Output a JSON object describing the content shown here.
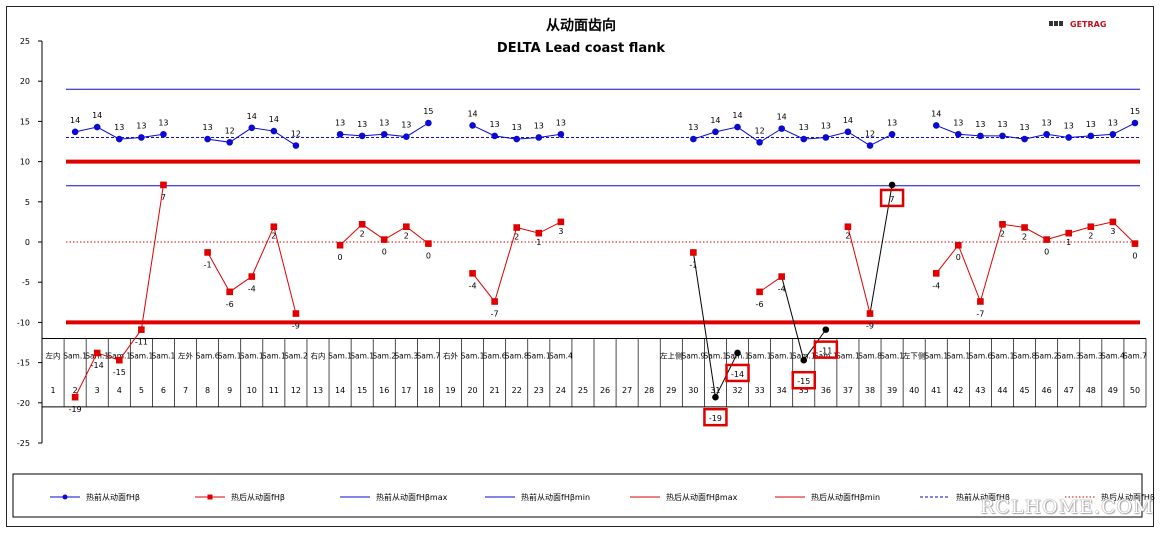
{
  "brand": {
    "name": "GETRAG",
    "color": "#c0121f"
  },
  "watermark": "RCLHOME.COM",
  "colors": {
    "blue": "#0a0ad0",
    "red": "#e00000",
    "black": "#000000",
    "grid": "#000000"
  },
  "chart_data": {
    "type": "line",
    "title": "从动面齿向",
    "subtitle": "DELTA Lead coast flank",
    "ylim": [
      -25,
      25
    ],
    "yticks": [
      -25,
      -20,
      -15,
      -10,
      -5,
      0,
      5,
      10,
      15,
      20,
      25
    ],
    "x": [
      1,
      2,
      3,
      4,
      5,
      6,
      7,
      8,
      9,
      10,
      11,
      12,
      13,
      14,
      15,
      16,
      17,
      18,
      19,
      20,
      21,
      22,
      23,
      24,
      25,
      26,
      27,
      28,
      29,
      30,
      31,
      32,
      33,
      34,
      35,
      36,
      37,
      38,
      39,
      40,
      41,
      42,
      43,
      44,
      45,
      46,
      47,
      48,
      49,
      50
    ],
    "sample_labels": [
      {
        "x": 1,
        "text": "左内"
      },
      {
        "x": 2,
        "text": "Sam.1"
      },
      {
        "x": 3,
        "text": "Sam.1"
      },
      {
        "x": 4,
        "text": "Sam.1"
      },
      {
        "x": 5,
        "text": "Sam.1"
      },
      {
        "x": 6,
        "text": "Sam.1"
      },
      {
        "x": 7,
        "text": "左外"
      },
      {
        "x": 8,
        "text": "Sam.6"
      },
      {
        "x": 9,
        "text": "Sam.1"
      },
      {
        "x": 10,
        "text": "Sam.1"
      },
      {
        "x": 11,
        "text": "Sam.1"
      },
      {
        "x": 12,
        "text": "Sam.2"
      },
      {
        "x": 13,
        "text": "右内"
      },
      {
        "x": 14,
        "text": "Sam.1"
      },
      {
        "x": 15,
        "text": "Sam.1"
      },
      {
        "x": 16,
        "text": "Sam.2"
      },
      {
        "x": 17,
        "text": "Sam.3"
      },
      {
        "x": 18,
        "text": "Sam.7"
      },
      {
        "x": 19,
        "text": "右外"
      },
      {
        "x": 20,
        "text": "Sam.1"
      },
      {
        "x": 21,
        "text": "Sam.6"
      },
      {
        "x": 22,
        "text": "Sam.8"
      },
      {
        "x": 23,
        "text": "Sam.1"
      },
      {
        "x": 24,
        "text": "Sam.4"
      },
      {
        "x": 29,
        "text": "左上侧"
      },
      {
        "x": 30,
        "text": "Sam.9"
      },
      {
        "x": 31,
        "text": "Sam.1"
      },
      {
        "x": 32,
        "text": "Sam.1"
      },
      {
        "x": 33,
        "text": "Sam.1"
      },
      {
        "x": 34,
        "text": "Sam.1"
      },
      {
        "x": 35,
        "text": "Sam.1"
      },
      {
        "x": 36,
        "text": "Sam.1"
      },
      {
        "x": 37,
        "text": "Sam.1"
      },
      {
        "x": 38,
        "text": "Sam.8"
      },
      {
        "x": 39,
        "text": "Sam.1"
      },
      {
        "x": 40,
        "text": "左下侧"
      },
      {
        "x": 41,
        "text": "Sam.1"
      },
      {
        "x": 42,
        "text": "Sam.1"
      },
      {
        "x": 43,
        "text": "Sam.6"
      },
      {
        "x": 44,
        "text": "Sam.1"
      },
      {
        "x": 45,
        "text": "Sam.8"
      },
      {
        "x": 46,
        "text": "Sam.2"
      },
      {
        "x": 47,
        "text": "Sam.3"
      },
      {
        "x": 48,
        "text": "Sam.3"
      },
      {
        "x": 49,
        "text": "Sam.4"
      },
      {
        "x": 50,
        "text": "Sam.7"
      }
    ],
    "series": [
      {
        "name": "热前从动面fHβ",
        "style": "blue-circle",
        "points": [
          [
            2,
            13.7,
            "14"
          ],
          [
            3,
            14.3,
            "14"
          ],
          [
            4,
            12.8,
            "13"
          ],
          [
            5,
            13.0,
            "13"
          ],
          [
            6,
            13.4,
            "13"
          ],
          [
            8,
            12.8,
            "13"
          ],
          [
            9,
            12.4,
            "12"
          ],
          [
            10,
            14.2,
            "14"
          ],
          [
            11,
            13.8,
            "14"
          ],
          [
            12,
            12.0,
            "12"
          ],
          [
            14,
            13.4,
            "13"
          ],
          [
            15,
            13.2,
            "13"
          ],
          [
            16,
            13.4,
            "13"
          ],
          [
            17,
            13.1,
            "13"
          ],
          [
            18,
            14.8,
            "15"
          ],
          [
            20,
            14.5,
            "14"
          ],
          [
            21,
            13.2,
            "13"
          ],
          [
            22,
            12.8,
            "13"
          ],
          [
            23,
            13.0,
            "13"
          ],
          [
            24,
            13.4,
            "13"
          ],
          [
            30,
            12.8,
            "13"
          ],
          [
            31,
            13.7,
            "14"
          ],
          [
            32,
            14.3,
            "14"
          ],
          [
            33,
            12.4,
            "12"
          ],
          [
            34,
            14.1,
            "14"
          ],
          [
            35,
            12.8,
            "13"
          ],
          [
            36,
            13.0,
            "13"
          ],
          [
            37,
            13.7,
            "14"
          ],
          [
            38,
            12.0,
            "12"
          ],
          [
            39,
            13.4,
            "13"
          ],
          [
            41,
            14.5,
            "14"
          ],
          [
            42,
            13.4,
            "13"
          ],
          [
            43,
            13.2,
            "13"
          ],
          [
            44,
            13.2,
            "13"
          ],
          [
            45,
            12.8,
            "13"
          ],
          [
            46,
            13.4,
            "13"
          ],
          [
            47,
            13.0,
            "13"
          ],
          [
            48,
            13.2,
            "13"
          ],
          [
            49,
            13.4,
            "13"
          ],
          [
            50,
            14.8,
            "15"
          ]
        ],
        "groups": [
          [
            2,
            6
          ],
          [
            8,
            12
          ],
          [
            14,
            18
          ],
          [
            20,
            24
          ],
          [
            30,
            39
          ],
          [
            41,
            50
          ]
        ]
      },
      {
        "name": "热后从动面fHβ",
        "style": "red-square",
        "points": [
          [
            2,
            -19.3,
            "-19"
          ],
          [
            3,
            -13.8,
            "-14"
          ],
          [
            4,
            -14.7,
            "-15"
          ],
          [
            5,
            -10.9,
            "-11"
          ],
          [
            6,
            7.1,
            "7"
          ],
          [
            8,
            -1.3,
            "-1"
          ],
          [
            9,
            -6.2,
            "-6"
          ],
          [
            10,
            -4.3,
            "-4"
          ],
          [
            11,
            1.9,
            "2"
          ],
          [
            12,
            -8.9,
            "-9"
          ],
          [
            14,
            -0.4,
            "0"
          ],
          [
            15,
            2.2,
            "2"
          ],
          [
            16,
            0.3,
            "0"
          ],
          [
            17,
            1.9,
            "2"
          ],
          [
            18,
            -0.2,
            "0"
          ],
          [
            20,
            -3.9,
            "-4"
          ],
          [
            21,
            -7.4,
            "-7"
          ],
          [
            22,
            1.8,
            "2"
          ],
          [
            23,
            1.1,
            "1"
          ],
          [
            24,
            2.5,
            "3"
          ],
          [
            30,
            -1.3,
            "-1"
          ],
          [
            31,
            -19.3,
            "-19"
          ],
          [
            32,
            -13.8,
            "-14"
          ],
          [
            33,
            -6.2,
            "-6"
          ],
          [
            34,
            -4.3,
            "-4"
          ],
          [
            35,
            -14.7,
            "-15"
          ],
          [
            36,
            -10.9,
            "-11"
          ],
          [
            37,
            1.9,
            "2"
          ],
          [
            38,
            -8.9,
            "-9"
          ],
          [
            39,
            7.1,
            "7"
          ],
          [
            41,
            -3.9,
            "-4"
          ],
          [
            42,
            -0.4,
            "0"
          ],
          [
            43,
            -7.4,
            "-7"
          ],
          [
            44,
            2.2,
            "2"
          ],
          [
            45,
            1.8,
            "2"
          ],
          [
            46,
            0.3,
            "0"
          ],
          [
            47,
            1.1,
            "1"
          ],
          [
            48,
            1.9,
            "2"
          ],
          [
            49,
            2.5,
            "3"
          ],
          [
            50,
            -0.2,
            "0"
          ]
        ],
        "groups": [
          [
            2,
            6
          ],
          [
            8,
            12
          ],
          [
            14,
            18
          ],
          [
            20,
            24
          ],
          [
            30,
            30
          ],
          [
            33,
            34
          ],
          [
            37,
            38
          ],
          [
            41,
            50
          ]
        ]
      },
      {
        "name": "热前从动面fHβmax",
        "style": "blue-line",
        "value": 19
      },
      {
        "name": "热前从动面fHβmin",
        "style": "blue-line",
        "value": 7
      },
      {
        "name": "热后从动面fHβmax",
        "style": "red-thick",
        "value": 10
      },
      {
        "name": "热后从动面fHβmin",
        "style": "red-thick",
        "value": -10
      },
      {
        "name": "热前从动面fHβ",
        "style": "blue-dashed",
        "value": 13
      },
      {
        "name": "热后从动面fHβ",
        "style": "red-dotted",
        "value": 0
      }
    ],
    "black_segments": [
      [
        30,
        -1.3,
        31,
        -19.3
      ],
      [
        31,
        -19.3,
        32,
        -13.8
      ],
      [
        34,
        -4.3,
        35,
        -14.7
      ],
      [
        35,
        -14.7,
        36,
        -10.9
      ],
      [
        38,
        -8.9,
        39,
        7.1
      ]
    ],
    "highlighted": [
      31,
      32,
      35,
      36,
      39
    ],
    "legend_position": "bottom"
  }
}
